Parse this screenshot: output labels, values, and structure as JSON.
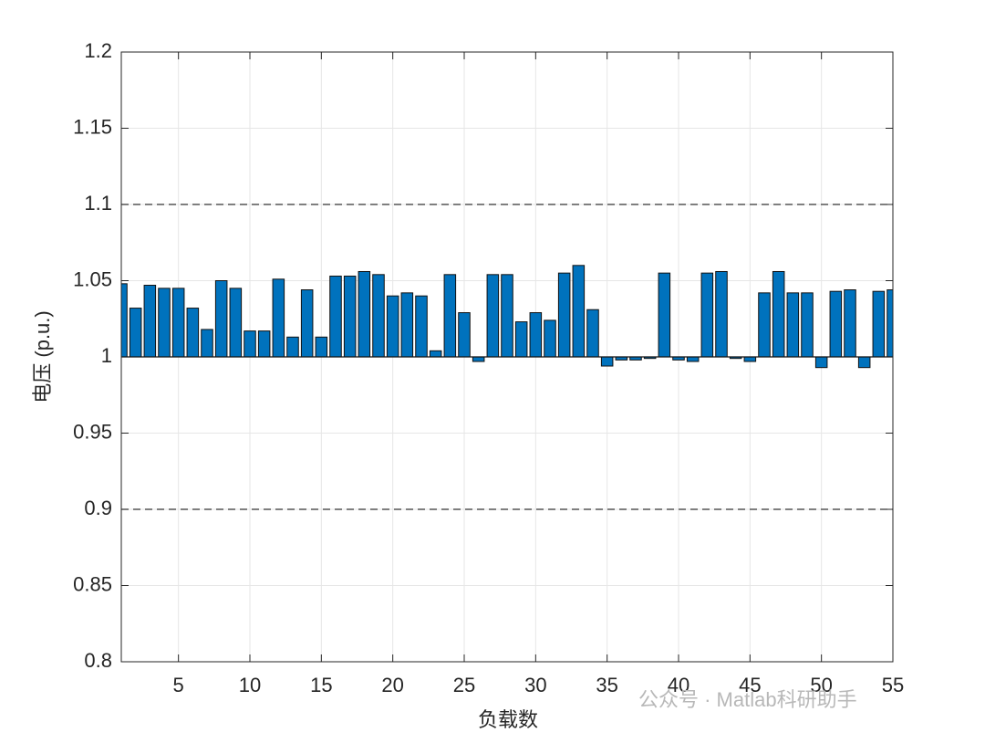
{
  "chart_data": {
    "type": "bar",
    "x": [
      1,
      2,
      3,
      4,
      5,
      6,
      7,
      8,
      9,
      10,
      11,
      12,
      13,
      14,
      15,
      16,
      17,
      18,
      19,
      20,
      21,
      22,
      23,
      24,
      25,
      26,
      27,
      28,
      29,
      30,
      31,
      32,
      33,
      34,
      35,
      36,
      37,
      38,
      39,
      40,
      41,
      42,
      43,
      44,
      45,
      46,
      47,
      48,
      49,
      50,
      51,
      52,
      53,
      54,
      55
    ],
    "values": [
      1.048,
      1.032,
      1.047,
      1.045,
      1.045,
      1.032,
      1.018,
      1.05,
      1.045,
      1.017,
      1.017,
      1.051,
      1.013,
      1.044,
      1.013,
      1.053,
      1.053,
      1.056,
      1.054,
      1.04,
      1.042,
      1.04,
      1.004,
      1.054,
      1.029,
      0.997,
      1.054,
      1.054,
      1.023,
      1.029,
      1.024,
      1.055,
      1.06,
      1.031,
      0.994,
      0.998,
      0.998,
      0.999,
      1.055,
      0.998,
      0.997,
      1.055,
      1.056,
      0.999,
      0.997,
      1.042,
      1.056,
      1.042,
      1.042,
      0.993,
      1.043,
      1.044,
      0.993,
      1.043,
      1.044
    ],
    "color": "#0072bd",
    "baseline": 1,
    "reference_lines": [
      1.1,
      0.9
    ],
    "xlabel": "负载数",
    "ylabel": "电压 (p.u.)",
    "xlim": [
      1,
      55
    ],
    "xticks": [
      5,
      10,
      15,
      20,
      25,
      30,
      35,
      40,
      45,
      50,
      55
    ],
    "ylim": [
      0.8,
      1.2
    ],
    "yticks": [
      0.8,
      0.85,
      0.9,
      0.95,
      1,
      1.05,
      1.1,
      1.15,
      1.2
    ],
    "grid": true,
    "watermark": "公众号 · Matlab科研助手"
  }
}
